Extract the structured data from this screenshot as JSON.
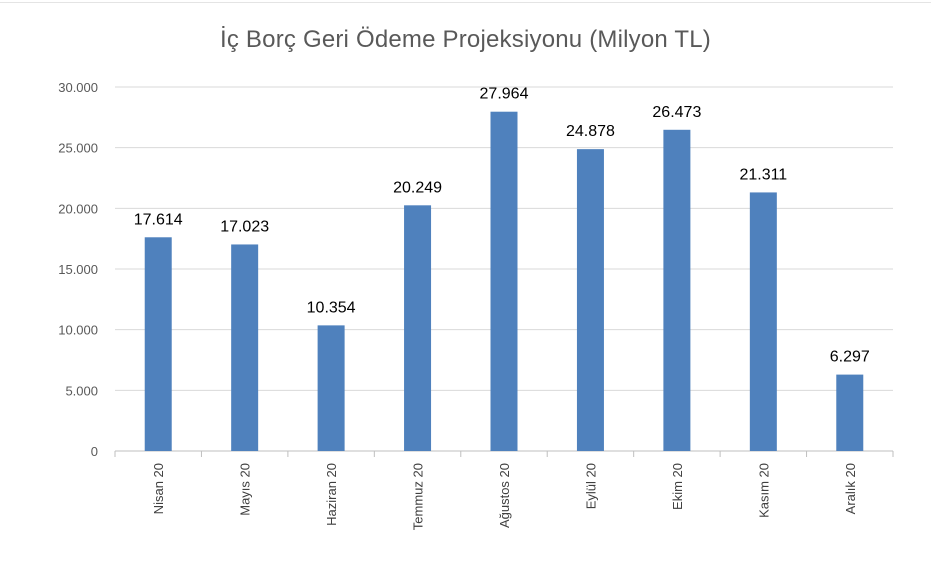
{
  "chart_data": {
    "type": "bar",
    "title": "İç Borç Geri Ödeme Projeksiyonu (Milyon TL)",
    "xlabel": "",
    "ylabel": "",
    "categories": [
      "Nisan 20",
      "Mayıs 20",
      "Haziran 20",
      "Temmuz 20",
      "Ağustos 20",
      "Eylül 20",
      "Ekim 20",
      "Kasım 20",
      "Aralık 20"
    ],
    "values": [
      17614,
      17023,
      10354,
      20249,
      27964,
      24878,
      26473,
      21311,
      6297
    ],
    "value_labels": [
      "17.614",
      "17.023",
      "10.354",
      "20.249",
      "27.964",
      "24.878",
      "26.473",
      "21.311",
      "6.297"
    ],
    "ylim": [
      0,
      30000
    ],
    "yticks": [
      0,
      5000,
      10000,
      15000,
      20000,
      25000,
      30000
    ],
    "ytick_labels": [
      "0",
      "5.000",
      "10.000",
      "15.000",
      "20.000",
      "25.000",
      "30.000"
    ],
    "grid": true,
    "legend": "none",
    "colors": {
      "bar": "#4f81bd",
      "grid": "#d9d9d9",
      "axis": "#bfbfbf"
    }
  }
}
